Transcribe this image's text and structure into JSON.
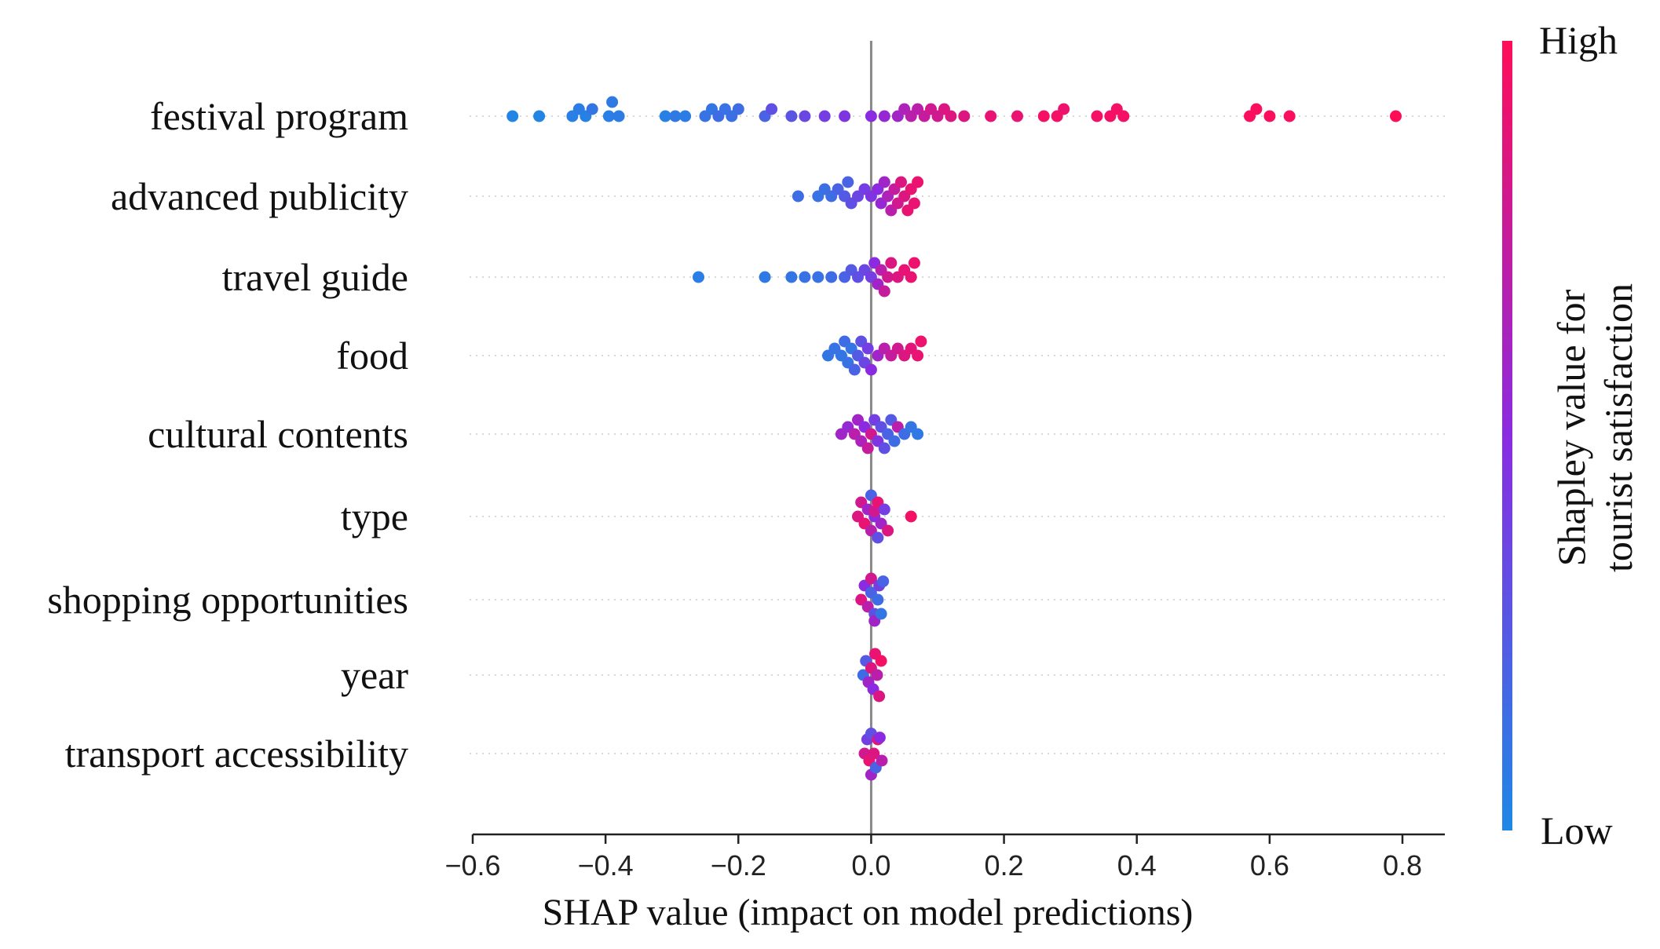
{
  "chart_data": {
    "type": "scatter",
    "subtype": "shap-beeswarm",
    "xlabel": "SHAP value (impact on model predictions)",
    "xlim": [
      -0.6,
      0.86
    ],
    "xticks": [
      -0.6,
      -0.4,
      -0.2,
      0.0,
      0.2,
      0.4,
      0.6,
      0.8
    ],
    "xtick_labels": [
      "−0.6",
      "−0.4",
      "−0.2",
      "0.0",
      "0.2",
      "0.4",
      "0.6",
      "0.8"
    ],
    "zero_line": true,
    "colorbar": {
      "title_line1": "Shapley value for",
      "title_line2": "tourist satisfaction",
      "high_label": "High",
      "low_label": "Low",
      "low_color": "#1e88e5",
      "high_color": "#ff0d57"
    },
    "features": [
      {
        "name": "festival program",
        "points": [
          [
            -0.54,
            0.02
          ],
          [
            -0.5,
            0.02
          ],
          [
            -0.45,
            0.05
          ],
          [
            -0.44,
            0.06
          ],
          [
            -0.43,
            0.04
          ],
          [
            -0.42,
            0.1
          ],
          [
            -0.395,
            0.05
          ],
          [
            -0.39,
            0.08
          ],
          [
            -0.38,
            0.07
          ],
          [
            -0.31,
            0.04
          ],
          [
            -0.295,
            0.08
          ],
          [
            -0.28,
            0.06
          ],
          [
            -0.25,
            0.12
          ],
          [
            -0.24,
            0.1
          ],
          [
            -0.23,
            0.15
          ],
          [
            -0.22,
            0.12
          ],
          [
            -0.21,
            0.14
          ],
          [
            -0.2,
            0.15
          ],
          [
            -0.16,
            0.2
          ],
          [
            -0.15,
            0.3
          ],
          [
            -0.12,
            0.28
          ],
          [
            -0.1,
            0.35
          ],
          [
            -0.07,
            0.4
          ],
          [
            -0.04,
            0.45
          ],
          [
            0.0,
            0.5
          ],
          [
            0.02,
            0.55
          ],
          [
            0.04,
            0.6
          ],
          [
            0.05,
            0.65
          ],
          [
            0.06,
            0.7
          ],
          [
            0.07,
            0.7
          ],
          [
            0.08,
            0.75
          ],
          [
            0.09,
            0.8
          ],
          [
            0.1,
            0.8
          ],
          [
            0.11,
            0.85
          ],
          [
            0.12,
            0.85
          ],
          [
            0.14,
            0.85
          ],
          [
            0.18,
            0.9
          ],
          [
            0.22,
            0.9
          ],
          [
            0.26,
            0.95
          ],
          [
            0.28,
            0.95
          ],
          [
            0.29,
            0.92
          ],
          [
            0.34,
            0.95
          ],
          [
            0.36,
            0.95
          ],
          [
            0.37,
            0.95
          ],
          [
            0.38,
            0.95
          ],
          [
            0.57,
            0.98
          ],
          [
            0.58,
            0.98
          ],
          [
            0.6,
            0.98
          ],
          [
            0.63,
            0.98
          ],
          [
            0.79,
            1.0
          ]
        ]
      },
      {
        "name": "advanced publicity",
        "points": [
          [
            -0.11,
            0.15
          ],
          [
            -0.08,
            0.12
          ],
          [
            -0.07,
            0.14
          ],
          [
            -0.06,
            0.15
          ],
          [
            -0.05,
            0.2
          ],
          [
            -0.04,
            0.25
          ],
          [
            -0.035,
            0.2
          ],
          [
            -0.03,
            0.3
          ],
          [
            -0.02,
            0.35
          ],
          [
            -0.01,
            0.4
          ],
          [
            0.0,
            0.45
          ],
          [
            0.01,
            0.5
          ],
          [
            0.015,
            0.55
          ],
          [
            0.02,
            0.6
          ],
          [
            0.025,
            0.65
          ],
          [
            0.03,
            0.7
          ],
          [
            0.035,
            0.75
          ],
          [
            0.04,
            0.8
          ],
          [
            0.045,
            0.85
          ],
          [
            0.05,
            0.85
          ],
          [
            0.055,
            0.9
          ],
          [
            0.06,
            0.9
          ],
          [
            0.065,
            0.9
          ],
          [
            0.07,
            0.92
          ]
        ]
      },
      {
        "name": "travel guide",
        "points": [
          [
            -0.26,
            0.05
          ],
          [
            -0.16,
            0.08
          ],
          [
            -0.12,
            0.1
          ],
          [
            -0.1,
            0.12
          ],
          [
            -0.08,
            0.12
          ],
          [
            -0.06,
            0.15
          ],
          [
            -0.04,
            0.2
          ],
          [
            -0.03,
            0.25
          ],
          [
            -0.02,
            0.3
          ],
          [
            -0.01,
            0.35
          ],
          [
            0.0,
            0.4
          ],
          [
            0.005,
            0.5
          ],
          [
            0.01,
            0.6
          ],
          [
            0.015,
            0.7
          ],
          [
            0.02,
            0.75
          ],
          [
            0.025,
            0.8
          ],
          [
            0.03,
            0.85
          ],
          [
            0.04,
            0.85
          ],
          [
            0.05,
            0.9
          ],
          [
            0.06,
            0.9
          ],
          [
            0.065,
            0.92
          ]
        ]
      },
      {
        "name": "food",
        "points": [
          [
            -0.065,
            0.1
          ],
          [
            -0.055,
            0.12
          ],
          [
            -0.045,
            0.1
          ],
          [
            -0.04,
            0.15
          ],
          [
            -0.035,
            0.12
          ],
          [
            -0.03,
            0.1
          ],
          [
            -0.025,
            0.2
          ],
          [
            -0.02,
            0.25
          ],
          [
            -0.015,
            0.3
          ],
          [
            -0.01,
            0.35
          ],
          [
            -0.005,
            0.4
          ],
          [
            0.0,
            0.5
          ],
          [
            0.01,
            0.6
          ],
          [
            0.02,
            0.7
          ],
          [
            0.03,
            0.75
          ],
          [
            0.04,
            0.8
          ],
          [
            0.05,
            0.85
          ],
          [
            0.06,
            0.88
          ],
          [
            0.07,
            0.9
          ],
          [
            0.075,
            0.92
          ]
        ]
      },
      {
        "name": "cultural contents",
        "points": [
          [
            -0.045,
            0.6
          ],
          [
            -0.035,
            0.55
          ],
          [
            -0.025,
            0.7
          ],
          [
            -0.02,
            0.6
          ],
          [
            -0.015,
            0.65
          ],
          [
            -0.01,
            0.5
          ],
          [
            -0.005,
            0.75
          ],
          [
            0.0,
            0.8
          ],
          [
            0.005,
            0.4
          ],
          [
            0.01,
            0.45
          ],
          [
            0.015,
            0.3
          ],
          [
            0.02,
            0.3
          ],
          [
            0.025,
            0.2
          ],
          [
            0.03,
            0.25
          ],
          [
            0.035,
            0.15
          ],
          [
            0.04,
            0.7
          ],
          [
            0.05,
            0.15
          ],
          [
            0.06,
            0.1
          ],
          [
            0.07,
            0.08
          ]
        ]
      },
      {
        "name": "type",
        "points": [
          [
            -0.02,
            0.85
          ],
          [
            -0.015,
            0.8
          ],
          [
            -0.01,
            0.9
          ],
          [
            -0.005,
            0.6
          ],
          [
            0.0,
            0.7
          ],
          [
            0.0,
            0.2
          ],
          [
            0.005,
            0.5
          ],
          [
            0.005,
            0.8
          ],
          [
            0.01,
            0.9
          ],
          [
            0.01,
            0.3
          ],
          [
            0.015,
            0.6
          ],
          [
            0.02,
            0.4
          ],
          [
            0.025,
            0.85
          ],
          [
            0.06,
            0.95
          ]
        ]
      },
      {
        "name": "shopping opportunities",
        "points": [
          [
            -0.015,
            0.85
          ],
          [
            -0.01,
            0.5
          ],
          [
            -0.005,
            0.7
          ],
          [
            0.0,
            0.2
          ],
          [
            0.0,
            0.8
          ],
          [
            0.005,
            0.3
          ],
          [
            0.005,
            0.6
          ],
          [
            0.01,
            0.15
          ],
          [
            0.012,
            0.4
          ],
          [
            0.015,
            0.1
          ],
          [
            0.018,
            0.2
          ]
        ]
      },
      {
        "name": "year",
        "points": [
          [
            -0.012,
            0.15
          ],
          [
            -0.008,
            0.25
          ],
          [
            -0.004,
            0.6
          ],
          [
            0.0,
            0.85
          ],
          [
            0.003,
            0.5
          ],
          [
            0.006,
            0.9
          ],
          [
            0.009,
            0.7
          ],
          [
            0.012,
            0.85
          ],
          [
            0.015,
            0.95
          ]
        ]
      },
      {
        "name": "transport accessibility",
        "points": [
          [
            -0.01,
            0.8
          ],
          [
            -0.006,
            0.4
          ],
          [
            -0.003,
            0.9
          ],
          [
            0.0,
            0.6
          ],
          [
            0.0,
            0.3
          ],
          [
            0.004,
            0.85
          ],
          [
            0.007,
            0.2
          ],
          [
            0.01,
            0.9
          ],
          [
            0.013,
            0.5
          ],
          [
            0.016,
            0.7
          ]
        ]
      }
    ]
  }
}
